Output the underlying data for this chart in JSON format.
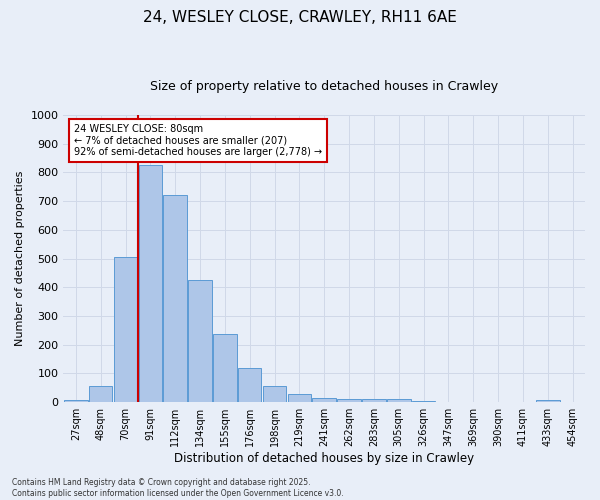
{
  "title": "24, WESLEY CLOSE, CRAWLEY, RH11 6AE",
  "subtitle": "Size of property relative to detached houses in Crawley",
  "xlabel": "Distribution of detached houses by size in Crawley",
  "ylabel": "Number of detached properties",
  "footer": "Contains HM Land Registry data © Crown copyright and database right 2025.\nContains public sector information licensed under the Open Government Licence v3.0.",
  "categories": [
    "27sqm",
    "48sqm",
    "70sqm",
    "91sqm",
    "112sqm",
    "134sqm",
    "155sqm",
    "176sqm",
    "198sqm",
    "219sqm",
    "241sqm",
    "262sqm",
    "283sqm",
    "305sqm",
    "326sqm",
    "347sqm",
    "369sqm",
    "390sqm",
    "411sqm",
    "433sqm",
    "454sqm"
  ],
  "bar_values": [
    8,
    58,
    505,
    825,
    720,
    425,
    238,
    118,
    55,
    30,
    15,
    12,
    10,
    12,
    5,
    2,
    0,
    0,
    0,
    8,
    0
  ],
  "bar_color": "#aec6e8",
  "bar_edgecolor": "#5b9bd5",
  "ylim": [
    0,
    1000
  ],
  "yticks": [
    0,
    100,
    200,
    300,
    400,
    500,
    600,
    700,
    800,
    900,
    1000
  ],
  "annotation_text": "24 WESLEY CLOSE: 80sqm\n← 7% of detached houses are smaller (207)\n92% of semi-detached houses are larger (2,778) →",
  "annotation_box_color": "#ffffff",
  "annotation_box_edgecolor": "#cc0000",
  "vline_x": 2.5,
  "vline_color": "#cc0000",
  "grid_color": "#d0d8e8",
  "background_color": "#e8eef8",
  "title_fontsize": 11,
  "subtitle_fontsize": 9
}
